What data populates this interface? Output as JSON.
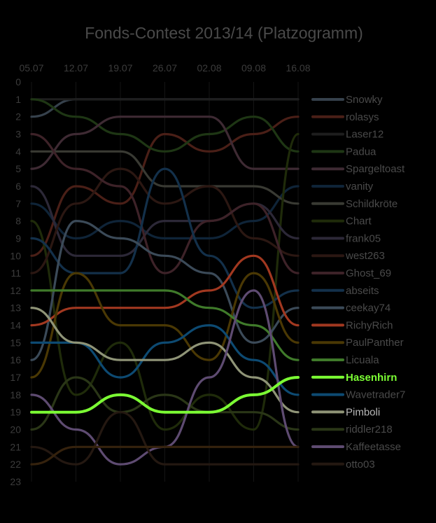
{
  "chart_data": {
    "type": "line",
    "title": "Fonds-Contest 2013/14 (Platzogramm)",
    "x": [
      "05.07",
      "12.07",
      "19.07",
      "26.07",
      "02.08",
      "09.08",
      "16.08"
    ],
    "y_ticks": [
      0,
      1,
      2,
      3,
      4,
      5,
      6,
      7,
      8,
      9,
      10,
      11,
      12,
      13,
      14,
      15,
      16,
      17,
      18,
      19,
      20,
      21,
      22,
      23
    ],
    "ylim": [
      0,
      23
    ],
    "y_inverted": true,
    "legend_position": "right",
    "grid": true,
    "highlight": "Hasenhirn",
    "series": [
      {
        "name": "Snowky",
        "color": "#36414c",
        "values": [
          2,
          1,
          1,
          1,
          1,
          1,
          1
        ]
      },
      {
        "name": "rolasys",
        "color": "#4a1f17",
        "values": [
          10,
          6,
          7,
          3,
          4,
          3,
          2
        ]
      },
      {
        "name": "Laser12",
        "color": "#1e1e1e",
        "values": [
          1,
          1,
          1,
          1,
          1,
          1,
          1
        ]
      },
      {
        "name": "Padua",
        "color": "#1e3614",
        "values": [
          1,
          2,
          3,
          4,
          3,
          2,
          4
        ]
      },
      {
        "name": "Spargeltoast",
        "color": "#3e2a33",
        "values": [
          5,
          3,
          2,
          2,
          2,
          5,
          5
        ]
      },
      {
        "name": "vanity",
        "color": "#0f2438",
        "values": [
          7,
          9,
          8,
          9,
          9,
          8,
          6
        ]
      },
      {
        "name": "Schildkröte",
        "color": "#393a33",
        "values": [
          4,
          4,
          4,
          6,
          6,
          6,
          7
        ]
      },
      {
        "name": "Chart",
        "color": "#1f2b0a",
        "values": [
          8,
          18,
          15,
          20,
          18,
          20,
          3
        ]
      },
      {
        "name": "frank05",
        "color": "#2c2837",
        "values": [
          6,
          10,
          10,
          8,
          8,
          7,
          9
        ]
      },
      {
        "name": "west263",
        "color": "#2b1712",
        "values": [
          11,
          7,
          5,
          7,
          6,
          9,
          10
        ]
      },
      {
        "name": "Ghost_69",
        "color": "#3d2228",
        "values": [
          3,
          5,
          6,
          11,
          8,
          7,
          11
        ]
      },
      {
        "name": "abseits",
        "color": "#13304a",
        "values": [
          9,
          11,
          11,
          5,
          10,
          13,
          12
        ]
      },
      {
        "name": "ceekay74",
        "color": "#3b4a58",
        "values": [
          16,
          8,
          9,
          10,
          11,
          15,
          13
        ]
      },
      {
        "name": "RichyRich",
        "color": "#a13820",
        "values": [
          14,
          13,
          13,
          13,
          12,
          10,
          14
        ]
      },
      {
        "name": "PaulPanther",
        "color": "#4a3804",
        "values": [
          17,
          11,
          14,
          14,
          16,
          11,
          15
        ]
      },
      {
        "name": "Licuala",
        "color": "#3f7a2a",
        "values": [
          12,
          12,
          12,
          12,
          13,
          14,
          16
        ]
      },
      {
        "name": "Hasenhirn",
        "color": "#7cff34",
        "values": [
          19,
          19,
          18,
          19,
          19,
          18,
          17
        ]
      },
      {
        "name": "Wavetrader7",
        "color": "#0d4a72",
        "values": [
          15,
          15,
          17,
          15,
          14,
          16,
          18
        ]
      },
      {
        "name": "Pimboli",
        "color": "#8f9477",
        "values": [
          13,
          15,
          16,
          16,
          15,
          17,
          19
        ]
      },
      {
        "name": "riddler218",
        "color": "#2a3617",
        "values": [
          20,
          17,
          19,
          18,
          19,
          19,
          20
        ]
      },
      {
        "name": "Kaffeetasse",
        "color": "#5e4b71",
        "values": [
          18,
          20,
          22,
          21,
          17,
          12,
          21
        ]
      },
      {
        "name": "otto03",
        "color": "#241811",
        "values": [
          21,
          22,
          19,
          22,
          22,
          22,
          22
        ]
      },
      {
        "name": "",
        "color": "#35220d",
        "values": [
          22,
          21,
          21,
          21,
          21,
          21,
          21
        ]
      }
    ]
  }
}
